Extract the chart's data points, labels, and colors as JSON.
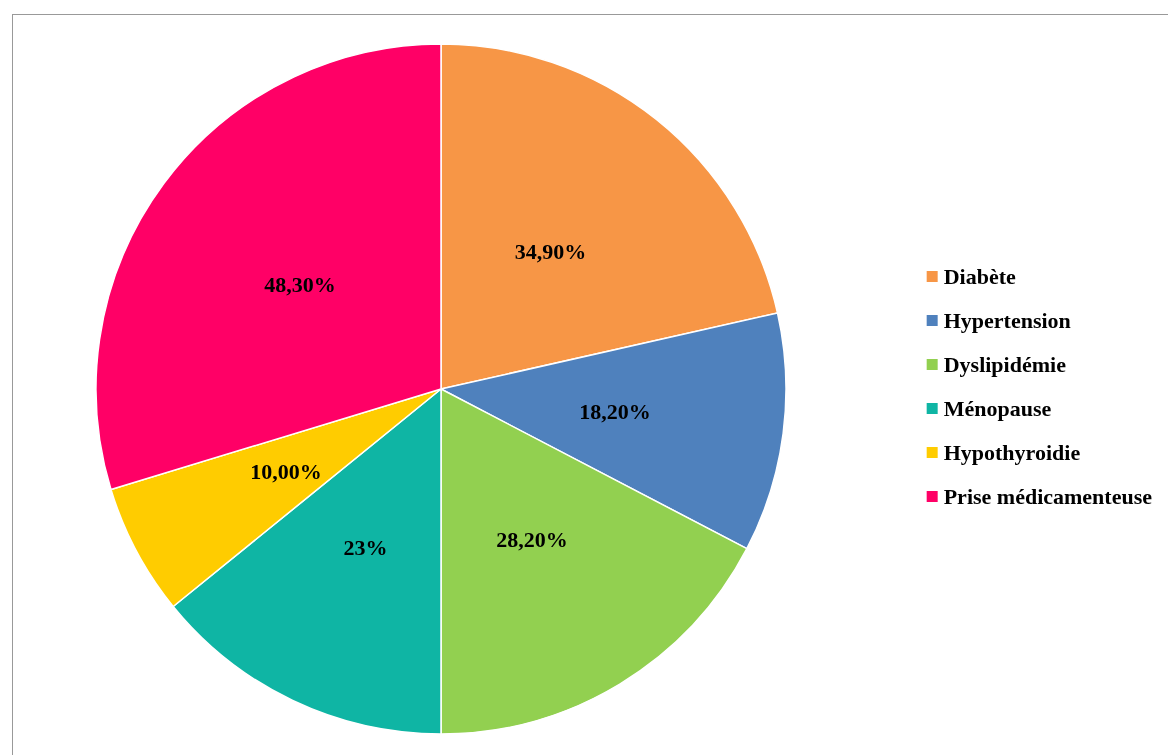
{
  "chart_data": {
    "type": "pie",
    "categories": [
      "Diabète",
      "Hypertension",
      "Dyslipidémie",
      "Ménopause",
      "Hypothyroidie",
      "Prise médicamenteuse"
    ],
    "values": [
      34.9,
      18.2,
      28.2,
      23,
      10,
      48.3
    ],
    "value_labels": [
      "34,90%",
      "18,20%",
      "28,20%",
      "23%",
      "10,00%",
      "48,30%"
    ],
    "colors": [
      "#f79646",
      "#4f81bd",
      "#92d050",
      "#0fb5a4",
      "#ffcc00",
      "#ff0066"
    ],
    "legend": "right"
  }
}
